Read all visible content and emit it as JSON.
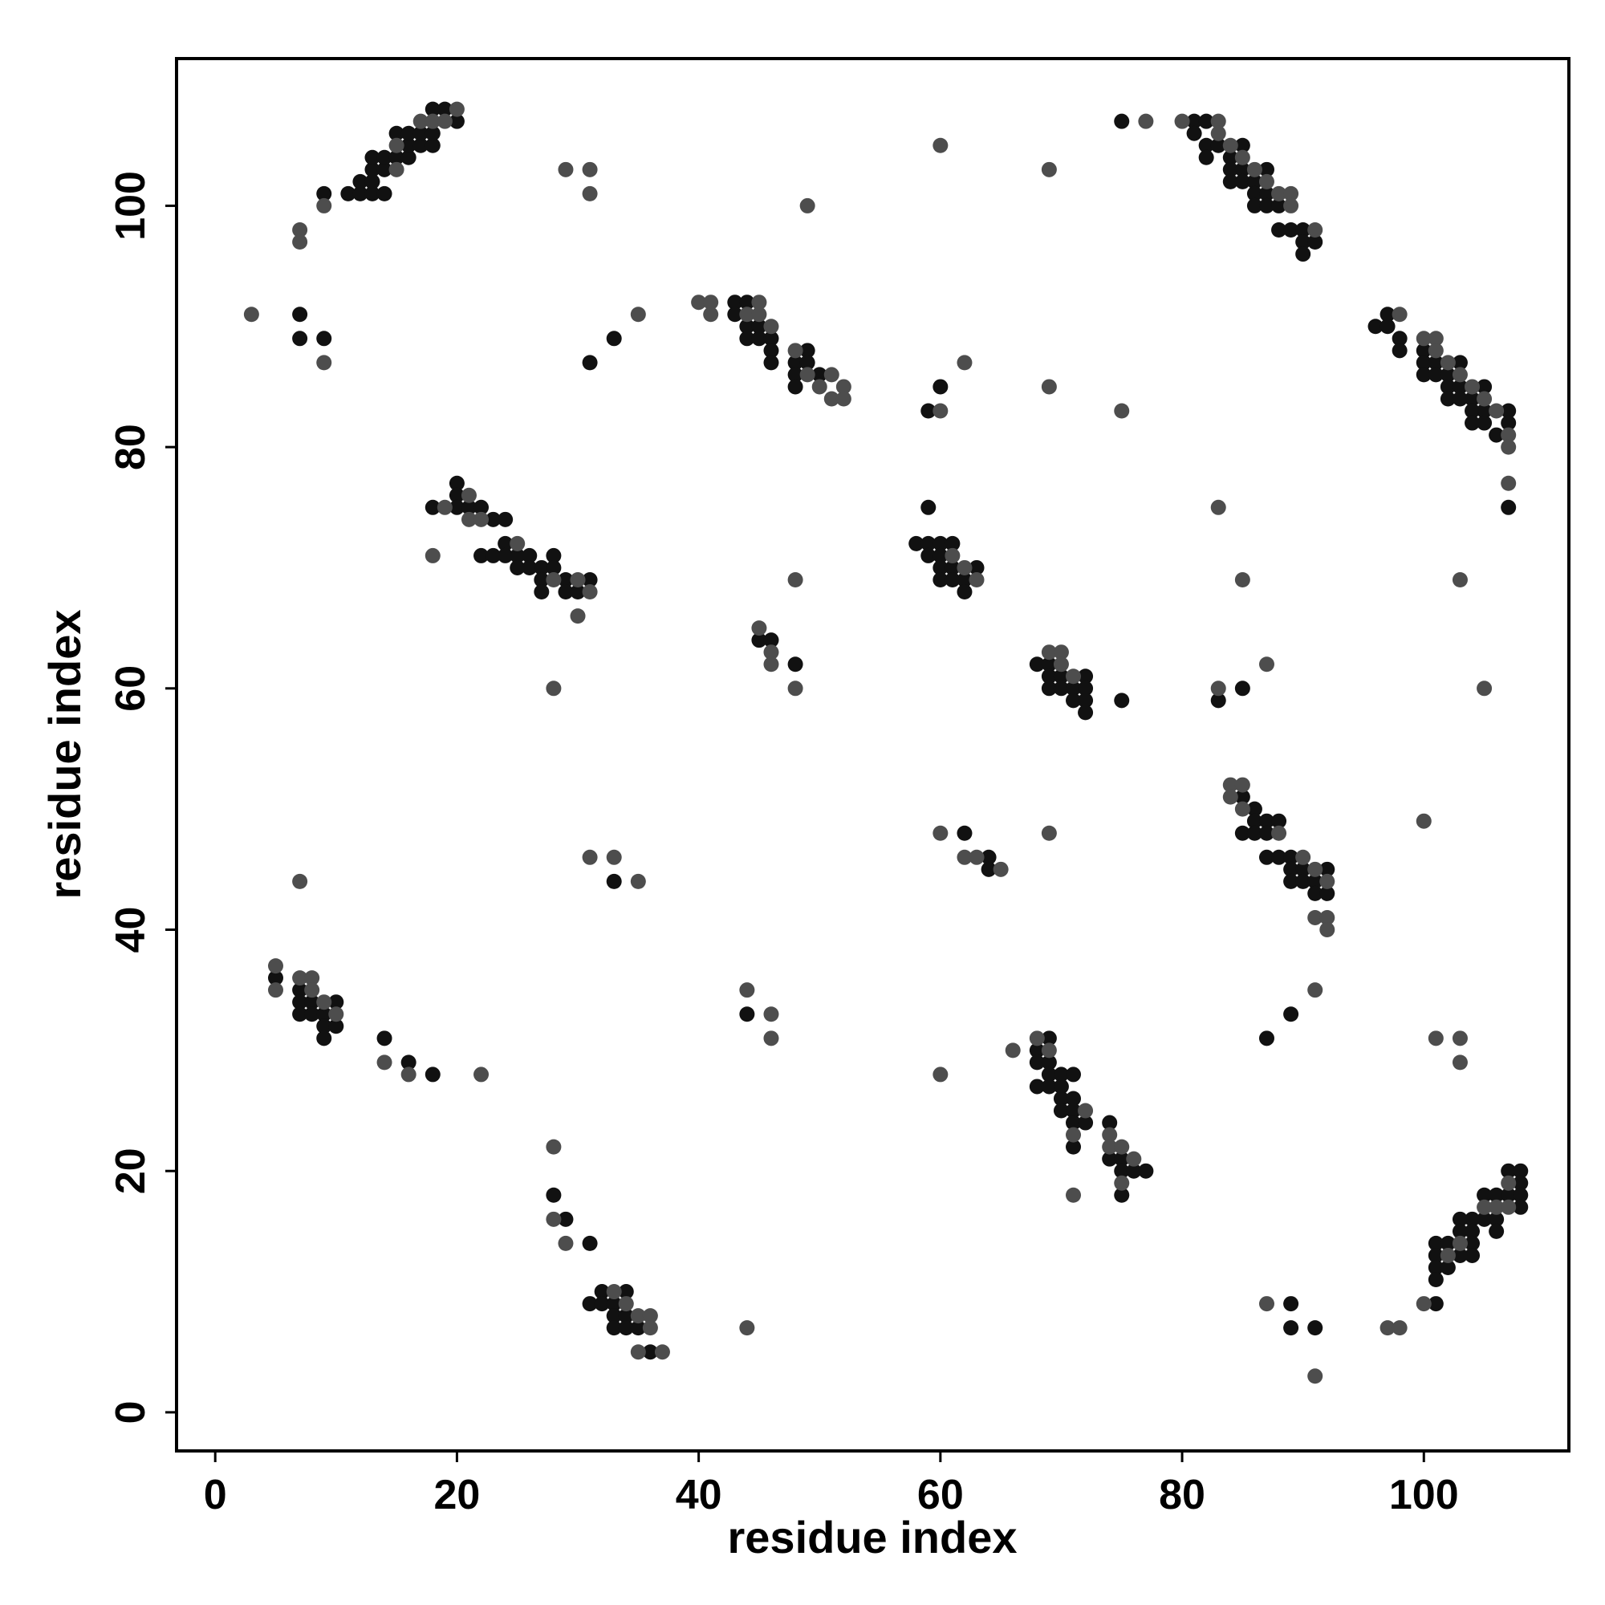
{
  "chart_data": {
    "type": "scatter",
    "x_label": "residue index",
    "y_label": "residue index",
    "xlim": [
      -3.2,
      112.0
    ],
    "ylim": [
      -3.2,
      112.2
    ],
    "xticks": [
      0,
      20,
      40,
      60,
      80,
      100
    ],
    "yticks": [
      0,
      20,
      40,
      60,
      80,
      100
    ],
    "grid": false,
    "series": [
      {
        "color": "#111111",
        "x": [
          9,
          11,
          12,
          12,
          13,
          13,
          13,
          13,
          14,
          14,
          14,
          15,
          15,
          16,
          16,
          16,
          17,
          17,
          18,
          18,
          18,
          19,
          20,
          7,
          7,
          9,
          33,
          31,
          43,
          43,
          44,
          44,
          44,
          45,
          45,
          46,
          46,
          46,
          48,
          48,
          48,
          49,
          49,
          50,
          75,
          59,
          60,
          81,
          81,
          82,
          82,
          82,
          83,
          84,
          84,
          84,
          85,
          85,
          85,
          86,
          86,
          86,
          87,
          87,
          87,
          88,
          88,
          89,
          90,
          90,
          90,
          91,
          96,
          97,
          97,
          98,
          98,
          100,
          100,
          100,
          101,
          101,
          102,
          102,
          102,
          103,
          103,
          103,
          104,
          104,
          104,
          105,
          105,
          105,
          106,
          107,
          107,
          107,
          83,
          85,
          18,
          20,
          20,
          20,
          21,
          22,
          23,
          24,
          22,
          23,
          24,
          24,
          25,
          25,
          26,
          26,
          27,
          27,
          27,
          28,
          28,
          29,
          29,
          30,
          31,
          45,
          46,
          48,
          58,
          59,
          59,
          59,
          60,
          60,
          60,
          60,
          61,
          61,
          61,
          62,
          62,
          63,
          68,
          69,
          69,
          69,
          70,
          70,
          71,
          71,
          72,
          72,
          72,
          72,
          75,
          85,
          85,
          86,
          86,
          86,
          87,
          87,
          88,
          87,
          88,
          89,
          89,
          89,
          90,
          90,
          91,
          91,
          92,
          92,
          62,
          64,
          64,
          33,
          5,
          7,
          7,
          7,
          8,
          8,
          9,
          9,
          9,
          10,
          10,
          14,
          16,
          18,
          44,
          68,
          68,
          68,
          69,
          69,
          69,
          69,
          70,
          70,
          70,
          70,
          71,
          71,
          71,
          71,
          71,
          72,
          74,
          74,
          75,
          75,
          75,
          76,
          77,
          87,
          89,
          101,
          101,
          101,
          101,
          102,
          102,
          103,
          103,
          103,
          104,
          104,
          104,
          104,
          105,
          105,
          106,
          106,
          106,
          107,
          107,
          108,
          108,
          108,
          108,
          101,
          28,
          29,
          31,
          31,
          32,
          32,
          33,
          33,
          33,
          34,
          34,
          34,
          35,
          36,
          89,
          89,
          91
        ],
        "y": [
          101,
          101,
          101,
          102,
          101,
          102,
          103,
          104,
          101,
          103,
          104,
          104,
          106,
          104,
          105,
          106,
          105,
          106,
          105,
          106,
          108,
          108,
          107,
          91,
          89,
          89,
          89,
          87,
          92,
          91,
          92,
          90,
          89,
          90,
          89,
          89,
          88,
          87,
          87,
          86,
          85,
          88,
          87,
          86,
          107,
          83,
          85,
          107,
          106,
          107,
          105,
          104,
          105,
          104,
          103,
          102,
          105,
          103,
          102,
          102,
          101,
          100,
          103,
          101,
          100,
          100,
          98,
          98,
          98,
          97,
          96,
          97,
          90,
          91,
          90,
          89,
          88,
          88,
          87,
          86,
          87,
          86,
          86,
          85,
          84,
          87,
          85,
          84,
          84,
          83,
          82,
          85,
          83,
          82,
          81,
          83,
          82,
          75,
          59,
          60,
          75,
          77,
          76,
          75,
          75,
          75,
          74,
          74,
          71,
          71,
          72,
          71,
          71,
          70,
          71,
          70,
          70,
          69,
          68,
          71,
          70,
          69,
          68,
          68,
          69,
          64,
          64,
          62,
          72,
          75,
          72,
          71,
          72,
          71,
          70,
          69,
          72,
          70,
          69,
          69,
          68,
          70,
          62,
          62,
          61,
          60,
          61,
          60,
          60,
          59,
          61,
          60,
          59,
          58,
          59,
          51,
          48,
          50,
          49,
          48,
          49,
          48,
          49,
          46,
          46,
          46,
          45,
          44,
          45,
          44,
          44,
          43,
          45,
          43,
          48,
          46,
          45,
          44,
          36,
          35,
          34,
          33,
          34,
          33,
          33,
          32,
          31,
          34,
          32,
          31,
          29,
          28,
          33,
          30,
          29,
          27,
          31,
          29,
          28,
          27,
          28,
          27,
          26,
          25,
          28,
          26,
          25,
          24,
          22,
          24,
          24,
          21,
          21,
          20,
          18,
          20,
          20,
          31,
          33,
          14,
          13,
          12,
          11,
          14,
          12,
          16,
          15,
          13,
          16,
          15,
          14,
          13,
          18,
          16,
          18,
          16,
          15,
          20,
          18,
          20,
          19,
          18,
          17,
          9,
          18,
          16,
          14,
          9,
          10,
          9,
          9,
          8,
          7,
          10,
          8,
          7,
          7,
          5,
          9,
          7,
          7
        ]
      },
      {
        "color": "#4d4d4d",
        "x": [
          9,
          7,
          7,
          15,
          15,
          17,
          18,
          19,
          20,
          3,
          9,
          29,
          31,
          31,
          35,
          40,
          41,
          41,
          44,
          45,
          45,
          46,
          48,
          49,
          50,
          51,
          51,
          52,
          52,
          49,
          60,
          69,
          77,
          60,
          62,
          69,
          75,
          80,
          83,
          83,
          84,
          85,
          86,
          87,
          88,
          89,
          89,
          91,
          98,
          100,
          101,
          101,
          102,
          103,
          104,
          105,
          106,
          107,
          107,
          107,
          83,
          85,
          103,
          105,
          87,
          83,
          100,
          19,
          21,
          21,
          22,
          25,
          28,
          30,
          31,
          30,
          18,
          28,
          45,
          46,
          46,
          48,
          48,
          61,
          62,
          63,
          69,
          70,
          70,
          71,
          84,
          84,
          85,
          85,
          88,
          90,
          91,
          91,
          92,
          92,
          92,
          60,
          62,
          63,
          65,
          69,
          7,
          31,
          33,
          35,
          5,
          5,
          7,
          8,
          8,
          9,
          10,
          14,
          16,
          22,
          44,
          46,
          46,
          60,
          66,
          68,
          69,
          71,
          72,
          74,
          74,
          75,
          75,
          76,
          71,
          91,
          101,
          103,
          103,
          102,
          103,
          105,
          106,
          107,
          107,
          100,
          28,
          28,
          29,
          33,
          34,
          35,
          35,
          36,
          36,
          37,
          44,
          87,
          91,
          97,
          98
        ],
        "y": [
          100,
          98,
          97,
          103,
          105,
          107,
          107,
          107,
          108,
          91,
          87,
          103,
          103,
          101,
          91,
          92,
          92,
          91,
          91,
          92,
          91,
          90,
          88,
          86,
          85,
          86,
          84,
          85,
          84,
          100,
          105,
          103,
          107,
          83,
          87,
          85,
          83,
          107,
          107,
          106,
          105,
          104,
          103,
          102,
          101,
          101,
          100,
          98,
          91,
          89,
          89,
          88,
          87,
          86,
          85,
          84,
          83,
          81,
          80,
          77,
          75,
          69,
          69,
          60,
          62,
          60,
          49,
          75,
          76,
          74,
          74,
          72,
          69,
          69,
          68,
          66,
          71,
          60,
          65,
          63,
          62,
          69,
          60,
          71,
          70,
          69,
          63,
          63,
          62,
          61,
          52,
          51,
          52,
          50,
          48,
          46,
          45,
          41,
          44,
          41,
          40,
          48,
          46,
          46,
          45,
          48,
          44,
          46,
          46,
          44,
          37,
          35,
          36,
          36,
          35,
          34,
          33,
          29,
          28,
          28,
          35,
          33,
          31,
          28,
          30,
          31,
          30,
          23,
          25,
          23,
          22,
          22,
          19,
          21,
          18,
          35,
          31,
          31,
          29,
          13,
          14,
          17,
          17,
          19,
          17,
          9,
          22,
          16,
          14,
          10,
          9,
          8,
          5,
          8,
          7,
          5,
          7,
          9,
          3,
          7,
          7
        ]
      }
    ]
  }
}
